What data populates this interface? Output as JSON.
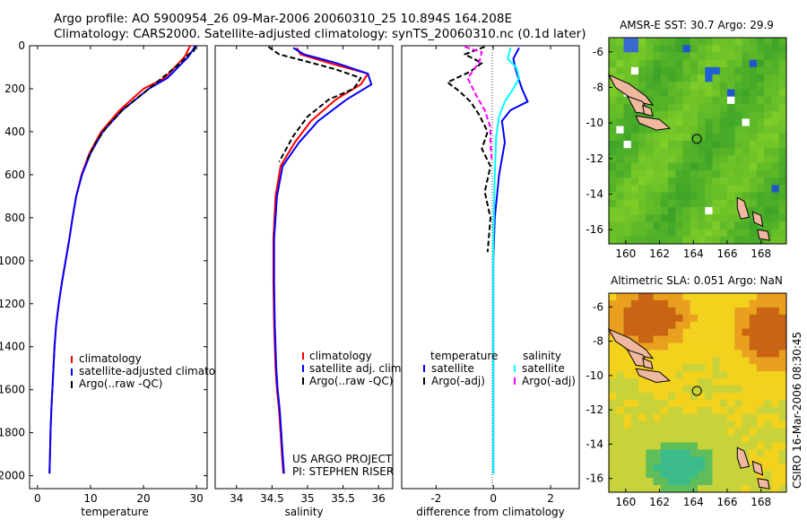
{
  "header": {
    "line1": "Argo profile: AO 5900954_26 09-Mar-2006 20060310_25 10.894S 164.208E",
    "line2": "Climatology: CARS2000. Satellite-adjusted climatology: synTS_20060310.nc (0.1d later)"
  },
  "colors": {
    "climatology": "#ff0000",
    "satellite": "#0000ff",
    "argo": "#000000",
    "satellite_salinity": "#00ffff",
    "argo_salinity": "#ff00ff"
  },
  "depth_axis": {
    "ticks": [
      0,
      200,
      400,
      600,
      800,
      1000,
      1200,
      1400,
      1600,
      1800,
      2000
    ],
    "ylim": [
      0,
      2060
    ]
  },
  "chart_data": [
    {
      "type": "line",
      "id": "temperature",
      "xlabel": "temperature",
      "xlim": [
        -1.5,
        32
      ],
      "xticks": [
        0,
        10,
        20,
        30
      ],
      "series": [
        {
          "name": "climatology",
          "color": "#ff0000",
          "x": [
            28.8,
            27.8,
            24,
            20,
            15.5,
            12,
            9.8,
            8.3,
            7.3,
            6.6,
            6,
            4.6,
            4,
            3.5,
            3.2,
            3,
            2.8,
            2.6,
            2.45,
            2.35,
            2.25
          ],
          "y": [
            0,
            50,
            150,
            200,
            300,
            400,
            500,
            600,
            700,
            800,
            900,
            1100,
            1200,
            1300,
            1400,
            1500,
            1600,
            1700,
            1800,
            1900,
            1990
          ]
        },
        {
          "name": "satellite-adjusted climatology",
          "color": "#0000ff",
          "x": [
            29.8,
            28.5,
            24.5,
            21,
            16,
            12.3,
            10,
            8.4,
            7.3,
            6.6,
            6,
            4.6,
            4,
            3.5,
            3.2,
            3,
            2.8,
            2.6,
            2.45,
            2.35,
            2.25
          ],
          "y": [
            0,
            50,
            150,
            200,
            300,
            400,
            500,
            600,
            700,
            800,
            900,
            1100,
            1200,
            1300,
            1400,
            1500,
            1600,
            1700,
            1800,
            1900,
            1990
          ]
        },
        {
          "name": "Argo(..raw -QC)",
          "color": "#000000",
          "dash": "6,3",
          "x": [
            29.8,
            29.5,
            28.5,
            27,
            24,
            21,
            16,
            13,
            11,
            9.2
          ],
          "y": [
            5,
            25,
            40,
            80,
            140,
            200,
            300,
            380,
            450,
            540
          ]
        }
      ],
      "legend": [
        "climatology",
        "satellite-adjusted climatology",
        "Argo(..raw -QC)"
      ]
    },
    {
      "type": "line",
      "id": "salinity",
      "xlabel": "salinity",
      "xlim": [
        33.7,
        36.2
      ],
      "xticks": [
        34,
        34.5,
        35,
        35.5,
        36
      ],
      "series": [
        {
          "name": "climatology",
          "color": "#ff0000",
          "x": [
            34.85,
            34.9,
            35.3,
            35.85,
            35.75,
            35.4,
            35.05,
            34.82,
            34.62,
            34.55,
            34.52,
            34.52,
            34.53,
            34.55,
            34.57,
            34.6,
            34.62,
            34.64,
            34.66
          ],
          "y": [
            10,
            40,
            80,
            130,
            180,
            250,
            350,
            450,
            560,
            700,
            900,
            1100,
            1300,
            1500,
            1600,
            1700,
            1800,
            1900,
            1990
          ]
        },
        {
          "name": "satellite adj. clim.",
          "color": "#0000ff",
          "x": [
            34.8,
            34.95,
            35.4,
            35.85,
            35.9,
            35.55,
            35.15,
            34.88,
            34.65,
            34.57,
            34.53,
            34.53,
            34.54,
            34.56,
            34.58,
            34.61,
            34.63,
            34.65,
            34.67
          ],
          "y": [
            10,
            40,
            80,
            130,
            180,
            250,
            350,
            450,
            560,
            700,
            900,
            1100,
            1300,
            1500,
            1600,
            1700,
            1800,
            1900,
            1990
          ]
        },
        {
          "name": "Argo(..raw -QC)",
          "color": "#000000",
          "dash": "6,3",
          "x": [
            34.45,
            34.6,
            34.95,
            35.4,
            35.75,
            35.65,
            35.3,
            35.0,
            34.8,
            34.6
          ],
          "y": [
            5,
            40,
            70,
            110,
            150,
            200,
            250,
            330,
            420,
            540
          ]
        }
      ],
      "legend": [
        "climatology",
        "satellite adj. clim.",
        "Argo(..raw -QC)"
      ]
    },
    {
      "type": "line",
      "id": "difference",
      "xlabel": "difference from climatology",
      "xlim": [
        -3.2,
        3
      ],
      "xticks": [
        -2,
        0,
        2
      ],
      "series": [
        {
          "name": "temperature satellite",
          "color": "#0000ff",
          "x": [
            0.9,
            0.7,
            0.8,
            1.0,
            1.2,
            0.6,
            0.3,
            0.4,
            0.2,
            0.05,
            0.0,
            0.0,
            0.0
          ],
          "y": [
            10,
            60,
            120,
            200,
            260,
            300,
            350,
            450,
            600,
            800,
            1000,
            1500,
            1990
          ]
        },
        {
          "name": "salinity satellite",
          "color": "#00ffff",
          "x": [
            0.6,
            0.5,
            0.8,
            0.9,
            0.7,
            0.4,
            0.2,
            0.1,
            0.05,
            0.0,
            0.0,
            0.0
          ],
          "y": [
            10,
            60,
            100,
            150,
            200,
            260,
            330,
            420,
            600,
            900,
            1500,
            1990
          ]
        },
        {
          "name": "temperature Argo(-adj)",
          "color": "#000000",
          "dash": "6,3",
          "x": [
            -0.3,
            -1.0,
            -0.4,
            -0.8,
            -1.6,
            -1.2,
            -0.8,
            -0.5,
            -0.2,
            -0.4,
            -0.1,
            -0.3,
            -0.1,
            -0.2
          ],
          "y": [
            5,
            40,
            80,
            120,
            170,
            210,
            260,
            320,
            400,
            480,
            560,
            680,
            800,
            960
          ]
        },
        {
          "name": "salinity Argo(-adj)",
          "color": "#ff00ff",
          "dash": "6,3",
          "x": [
            -1.0,
            -0.4,
            -0.5,
            -0.9,
            -0.6,
            -0.3,
            -0.1,
            -0.1,
            -0.05
          ],
          "y": [
            5,
            30,
            80,
            150,
            230,
            300,
            380,
            460,
            540
          ]
        }
      ],
      "legend_temperature_title": "temperature",
      "legend_salinity_title": "salinity",
      "legend": {
        "satellite": "satellite",
        "argo": "Argo(-adj)"
      }
    },
    {
      "type": "heatmap",
      "id": "sst_map",
      "title": "AMSR-E SST: 30.7 Argo: 29.9",
      "xlim": [
        159,
        169.5
      ],
      "ylim": [
        -16.8,
        -5.2
      ],
      "xticks": [
        160,
        162,
        164,
        166,
        168
      ],
      "yticks": [
        -6,
        -8,
        -10,
        -12,
        -14,
        -16
      ],
      "marker": {
        "lon": 164.208,
        "lat": -10.894
      }
    },
    {
      "type": "heatmap",
      "id": "sla_map",
      "title": "Altimetric SLA: 0.051 Argo: NaN",
      "xlim": [
        159,
        169.5
      ],
      "ylim": [
        -16.8,
        -5.2
      ],
      "xticks": [
        160,
        162,
        164,
        166,
        168
      ],
      "yticks": [
        -6,
        -8,
        -10,
        -12,
        -14,
        -16
      ],
      "marker": {
        "lon": 164.208,
        "lat": -10.894
      }
    }
  ],
  "annotations": {
    "project": "US ARGO PROJECT",
    "pi": "PI: STEPHEN RISER",
    "timestamp": "CSIRO 16-Mar-2006 08:30:45"
  }
}
